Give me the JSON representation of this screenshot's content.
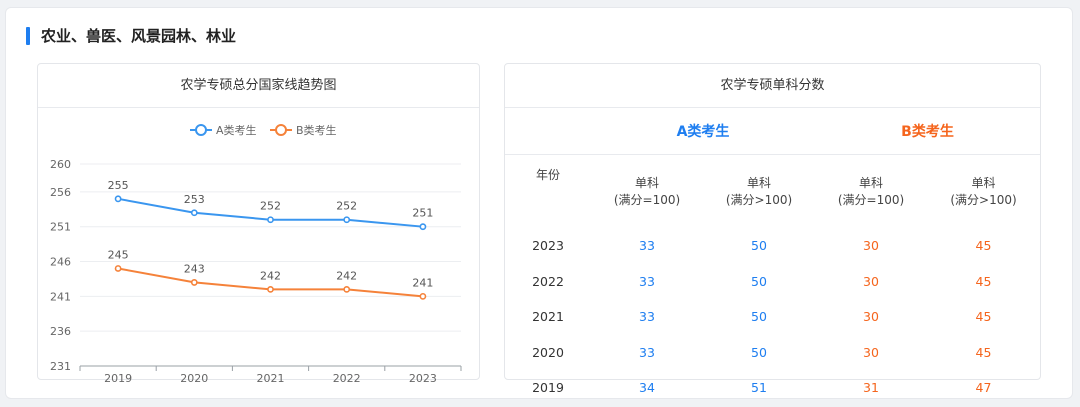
{
  "section": {
    "title": "农业、兽医、风景园林、林业"
  },
  "chart_card": {
    "title": "农学专硕总分国家线趋势图"
  },
  "chart_data": {
    "type": "line",
    "categories": [
      "2019",
      "2020",
      "2021",
      "2022",
      "2023"
    ],
    "series": [
      {
        "name": "A类考生",
        "values": [
          255,
          253,
          252,
          252,
          251
        ],
        "color": "#3a96ef"
      },
      {
        "name": "B类考生",
        "values": [
          245,
          243,
          242,
          242,
          241
        ],
        "color": "#f5823a"
      }
    ],
    "yticks": [
      231,
      236,
      241,
      246,
      251,
      256,
      260
    ],
    "ylim": [
      231,
      260
    ],
    "legend": "top-center",
    "grid": true
  },
  "score_card": {
    "title": "农学专硕单科分数",
    "group_a": "A类考生",
    "group_b": "B类考生",
    "col_year": "年份",
    "cols": [
      {
        "line1": "单科",
        "line2": "(满分=100)"
      },
      {
        "line1": "单科",
        "line2": "(满分>100)"
      },
      {
        "line1": "单科",
        "line2": "(满分=100)"
      },
      {
        "line1": "单科",
        "line2": "(满分>100)"
      }
    ],
    "rows": [
      {
        "year": "2023",
        "a1": "33",
        "a2": "50",
        "b1": "30",
        "b2": "45"
      },
      {
        "year": "2022",
        "a1": "33",
        "a2": "50",
        "b1": "30",
        "b2": "45"
      },
      {
        "year": "2021",
        "a1": "33",
        "a2": "50",
        "b1": "30",
        "b2": "45"
      },
      {
        "year": "2020",
        "a1": "33",
        "a2": "50",
        "b1": "30",
        "b2": "45"
      },
      {
        "year": "2019",
        "a1": "34",
        "a2": "51",
        "b1": "31",
        "b2": "47"
      }
    ]
  }
}
